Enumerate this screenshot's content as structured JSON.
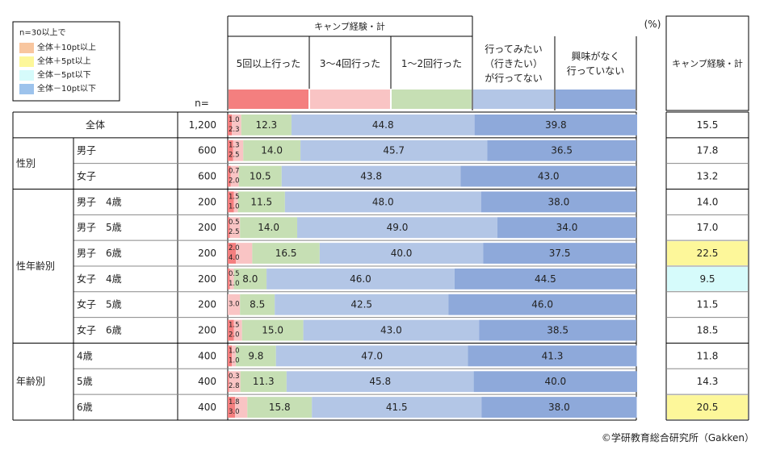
{
  "legend": {
    "title": "n=30以上で",
    "items": [
      {
        "label": "全体＋10pt以上",
        "color": "#f8c69f"
      },
      {
        "label": "全体＋5pt以上",
        "color": "#fdf79a"
      },
      {
        "label": "全体－5pt以下",
        "color": "#d6fbfb"
      },
      {
        "label": "全体－10pt以下",
        "color": "#9dc3ec"
      }
    ]
  },
  "header": {
    "group_label": "キャンプ経験・計",
    "unit": "(%)",
    "n_label": "n=",
    "total_header": "キャンプ経験・計"
  },
  "copyright": "©学研教育総合研究所（Gakken）",
  "chart_data": {
    "type": "bar",
    "stacked": true,
    "percent": true,
    "series": [
      {
        "name": "5回以上行った",
        "color": "#f47f7f"
      },
      {
        "name": "3～4回行った",
        "color": "#f9c4c4"
      },
      {
        "name": "1～2回行った",
        "color": "#c6dfb4"
      },
      {
        "name": "行ってみたい（行きたい）が行ってない",
        "label_lines": [
          "行ってみたい",
          "（行きたい）",
          "が行ってない"
        ],
        "color": "#b3c6e6"
      },
      {
        "name": "興味がなく行っていない",
        "label_lines": [
          "興味がなく",
          "行っていない"
        ],
        "color": "#8ea9da"
      }
    ],
    "rows": [
      {
        "group": "",
        "label": "全体",
        "n": "1,200",
        "values": [
          1.0,
          2.3,
          12.3,
          44.8,
          39.8
        ],
        "total": "15.5",
        "highlight": null
      },
      {
        "group": "性別",
        "label": "男子",
        "n": "600",
        "values": [
          1.3,
          2.5,
          14.0,
          45.7,
          36.5
        ],
        "total": "17.8",
        "highlight": null
      },
      {
        "group": "性別",
        "label": "女子",
        "n": "600",
        "values": [
          0.7,
          2.0,
          10.5,
          43.8,
          43.0
        ],
        "total": "13.2",
        "highlight": null
      },
      {
        "group": "性年齢別",
        "label": "男子　4歳",
        "n": "200",
        "values": [
          1.5,
          1.0,
          11.5,
          48.0,
          38.0
        ],
        "total": "14.0",
        "highlight": null
      },
      {
        "group": "性年齢別",
        "label": "男子　5歳",
        "n": "200",
        "values": [
          0.5,
          2.5,
          14.0,
          49.0,
          34.0
        ],
        "total": "17.0",
        "highlight": null
      },
      {
        "group": "性年齢別",
        "label": "男子　6歳",
        "n": "200",
        "values": [
          2.0,
          4.0,
          16.5,
          40.0,
          37.5
        ],
        "total": "22.5",
        "highlight": "#fdf79a"
      },
      {
        "group": "性年齢別",
        "label": "女子　4歳",
        "n": "200",
        "values": [
          0.5,
          1.0,
          8.0,
          46.0,
          44.5
        ],
        "total": "9.5",
        "highlight": "#d6fbfb"
      },
      {
        "group": "性年齢別",
        "label": "女子　5歳",
        "n": "200",
        "values": [
          0.0,
          3.0,
          8.5,
          42.5,
          46.0
        ],
        "total": "11.5",
        "highlight": null
      },
      {
        "group": "性年齢別",
        "label": "女子　6歳",
        "n": "200",
        "values": [
          1.5,
          2.0,
          15.0,
          43.0,
          38.5
        ],
        "total": "18.5",
        "highlight": null
      },
      {
        "group": "年齢別",
        "label": "4歳",
        "n": "400",
        "values": [
          1.0,
          1.0,
          9.8,
          47.0,
          41.3
        ],
        "total": "11.8",
        "highlight": null
      },
      {
        "group": "年齢別",
        "label": "5歳",
        "n": "400",
        "values": [
          0.3,
          2.8,
          11.3,
          45.8,
          40.0
        ],
        "total": "14.3",
        "highlight": null
      },
      {
        "group": "年齢別",
        "label": "6歳",
        "n": "400",
        "values": [
          1.8,
          3.0,
          15.8,
          41.5,
          38.0
        ],
        "total": "20.5",
        "highlight": "#fdf79a"
      }
    ],
    "groups": [
      "性別",
      "性年齢別",
      "年齢別"
    ]
  }
}
